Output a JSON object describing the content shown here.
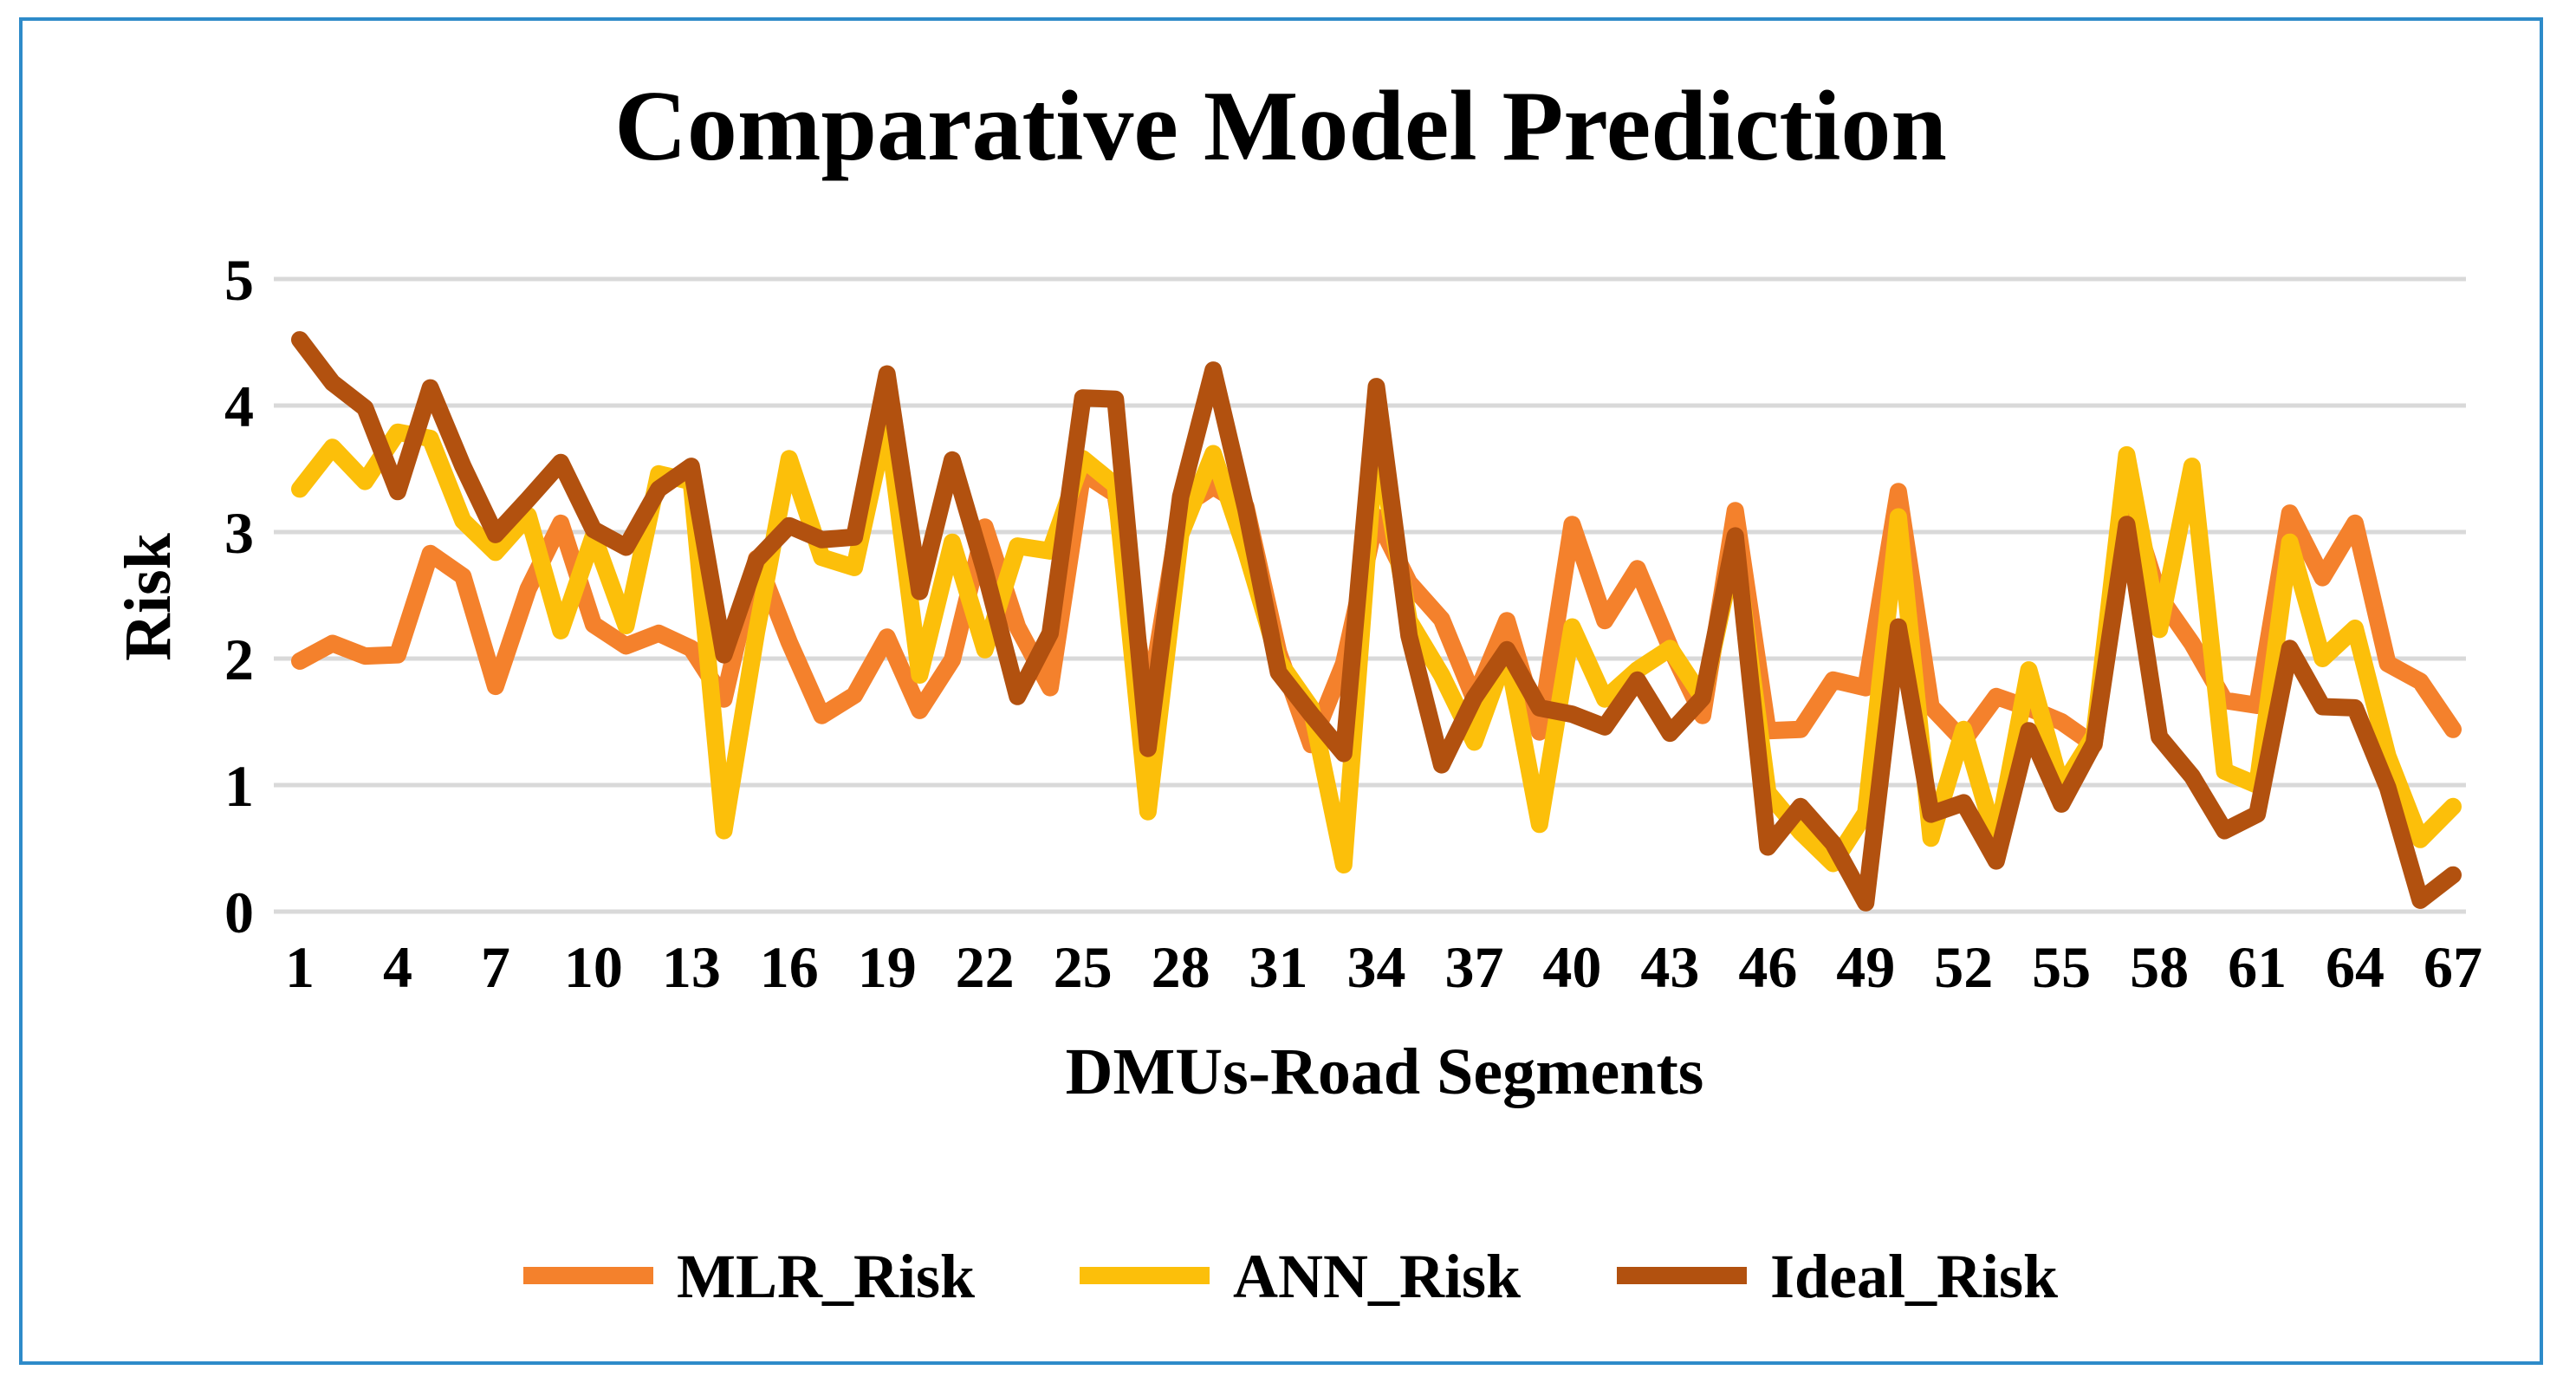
{
  "colors": {
    "frame": "#2e8bc9",
    "grid": "#d9d9d9",
    "mlr": "#f4812c",
    "ann": "#fcbf0a",
    "ideal": "#b2510f"
  },
  "chart_data": {
    "type": "line",
    "title": "Comparative Model Prediction",
    "xlabel": "DMUs-Road Segments",
    "ylabel": "Risk",
    "ylim": [
      0,
      5
    ],
    "y_ticks": [
      0,
      1,
      2,
      3,
      4,
      5
    ],
    "x_tick_labels": [
      "1",
      "4",
      "7",
      "10",
      "13",
      "16",
      "19",
      "22",
      "25",
      "28",
      "31",
      "34",
      "37",
      "40",
      "43",
      "46",
      "49",
      "52",
      "55",
      "58",
      "61",
      "64",
      "67"
    ],
    "grid": true,
    "legend_position": "bottom",
    "x": [
      1,
      2,
      3,
      4,
      5,
      6,
      7,
      8,
      9,
      10,
      11,
      12,
      13,
      14,
      15,
      16,
      17,
      18,
      19,
      20,
      21,
      22,
      23,
      24,
      25,
      26,
      27,
      28,
      29,
      30,
      31,
      32,
      33,
      34,
      35,
      36,
      37,
      38,
      39,
      40,
      41,
      42,
      43,
      44,
      45,
      46,
      47,
      48,
      49,
      50,
      51,
      52,
      53,
      54,
      55,
      56,
      57,
      58,
      59,
      60,
      61,
      62,
      63,
      64,
      65,
      66,
      67
    ],
    "series": [
      {
        "name": "MLR_Risk",
        "color": "#f4812c",
        "values": [
          1.98,
          2.12,
          2.02,
          2.03,
          2.83,
          2.65,
          1.78,
          2.55,
          3.07,
          2.27,
          2.1,
          2.2,
          2.08,
          1.68,
          2.79,
          2.13,
          1.55,
          1.71,
          2.17,
          1.59,
          1.99,
          3.04,
          2.25,
          1.77,
          3.47,
          3.3,
          1.62,
          3.19,
          3.36,
          3.2,
          2.05,
          1.32,
          1.96,
          3.12,
          2.6,
          2.31,
          1.68,
          2.3,
          1.42,
          3.06,
          2.3,
          2.71,
          2.09,
          1.55,
          3.17,
          1.43,
          1.44,
          1.83,
          1.77,
          3.32,
          1.62,
          1.35,
          1.7,
          1.61,
          1.5,
          1.32,
          3.3,
          2.49,
          2.12,
          1.67,
          1.63,
          3.15,
          2.64,
          3.07,
          1.96,
          1.82,
          1.44
        ]
      },
      {
        "name": "ANN_Risk",
        "color": "#fcbf0a",
        "values": [
          3.34,
          3.67,
          3.4,
          3.79,
          3.74,
          3.09,
          2.84,
          3.13,
          2.22,
          2.97,
          2.26,
          3.46,
          3.4,
          0.64,
          2.21,
          3.58,
          2.8,
          2.72,
          3.89,
          1.87,
          2.92,
          2.07,
          2.89,
          2.85,
          3.58,
          3.37,
          0.79,
          2.98,
          3.62,
          2.85,
          1.98,
          1.61,
          0.37,
          3.77,
          2.3,
          1.87,
          1.34,
          2.05,
          0.69,
          2.25,
          1.68,
          1.91,
          2.08,
          1.69,
          2.88,
          0.94,
          0.63,
          0.38,
          0.78,
          3.12,
          0.58,
          1.44,
          0.55,
          1.91,
          0.98,
          1.39,
          3.61,
          2.23,
          3.52,
          1.11,
          1.0,
          2.92,
          2.0,
          2.24,
          1.23,
          0.57,
          0.83
        ]
      },
      {
        "name": "Ideal_Risk",
        "color": "#b2510f",
        "values": [
          4.52,
          4.18,
          3.98,
          3.32,
          4.14,
          3.52,
          2.98,
          3.26,
          3.55,
          3.02,
          2.88,
          3.34,
          3.52,
          2.03,
          2.78,
          3.05,
          2.94,
          2.96,
          4.25,
          2.53,
          3.57,
          2.69,
          1.7,
          2.2,
          4.06,
          4.05,
          1.29,
          3.28,
          4.28,
          3.18,
          1.89,
          1.56,
          1.25,
          4.15,
          2.18,
          1.16,
          1.69,
          2.07,
          1.61,
          1.56,
          1.46,
          1.83,
          1.41,
          1.69,
          2.97,
          0.51,
          0.83,
          0.54,
          0.07,
          2.25,
          0.77,
          0.86,
          0.4,
          1.43,
          0.85,
          1.33,
          3.06,
          1.38,
          1.07,
          0.64,
          0.77,
          2.08,
          1.62,
          1.61,
          0.98,
          0.09,
          0.29
        ]
      }
    ]
  }
}
